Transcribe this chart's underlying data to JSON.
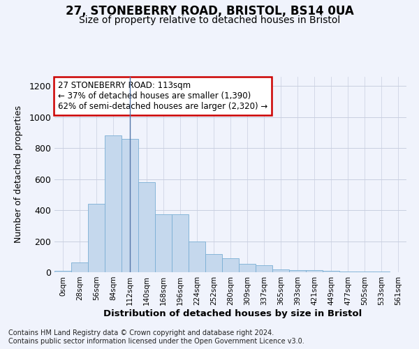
{
  "title1": "27, STONEBERRY ROAD, BRISTOL, BS14 0UA",
  "title2": "Size of property relative to detached houses in Bristol",
  "xlabel": "Distribution of detached houses by size in Bristol",
  "ylabel": "Number of detached properties",
  "annotation_line1": "27 STONEBERRY ROAD: 113sqm",
  "annotation_line2": "← 37% of detached houses are smaller (1,390)",
  "annotation_line3": "62% of semi-detached houses are larger (2,320) →",
  "footer1": "Contains HM Land Registry data © Crown copyright and database right 2024.",
  "footer2": "Contains public sector information licensed under the Open Government Licence v3.0.",
  "bar_color": "#c5d8ed",
  "bar_edge_color": "#7aafd4",
  "highlight_line_color": "#5577aa",
  "background_color": "#f0f3fc",
  "annotation_box_color": "#ffffff",
  "annotation_box_edge": "#cc0000",
  "grid_color": "#c8cfe0",
  "categories": [
    "0sqm",
    "28sqm",
    "56sqm",
    "84sqm",
    "112sqm",
    "140sqm",
    "168sqm",
    "196sqm",
    "224sqm",
    "252sqm",
    "280sqm",
    "309sqm",
    "337sqm",
    "365sqm",
    "393sqm",
    "421sqm",
    "449sqm",
    "477sqm",
    "505sqm",
    "533sqm",
    "561sqm"
  ],
  "values": [
    10,
    65,
    440,
    880,
    860,
    580,
    375,
    375,
    200,
    115,
    90,
    55,
    45,
    20,
    15,
    12,
    8,
    5,
    5,
    3,
    2
  ],
  "ylim": [
    0,
    1260
  ],
  "yticks": [
    0,
    200,
    400,
    600,
    800,
    1000,
    1200
  ],
  "highlight_bin_index": 4,
  "title1_fontsize": 12,
  "title2_fontsize": 10
}
